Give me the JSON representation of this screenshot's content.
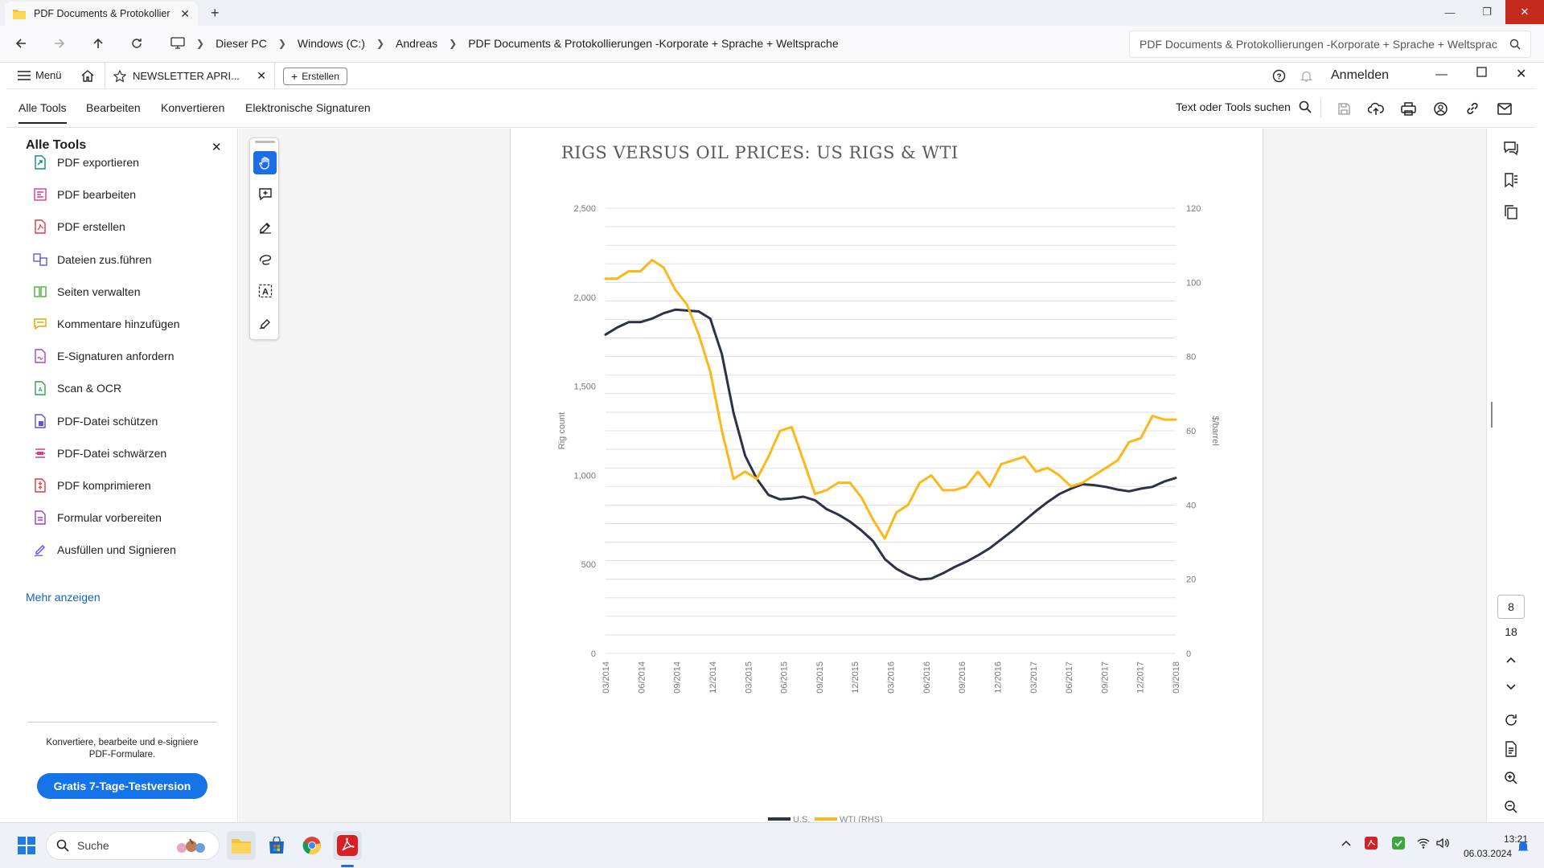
{
  "explorer": {
    "tab_title": "PDF Documents & Protokollier",
    "breadcrumb": [
      "Dieser PC",
      "Windows (C:)",
      "Andreas",
      "PDF Documents & Protokollierungen -Korporate + Sprache + Weltsprache"
    ],
    "search_text": "PDF Documents & Protokollierungen -Korporate + Sprache + Weltsprac"
  },
  "acrobat": {
    "menu_label": "Menü",
    "doc_tab_title": "NEWSLETTER APRI...",
    "create_button": "Erstellen",
    "sign_in": "Anmelden",
    "menu_items": [
      "Alle Tools",
      "Bearbeiten",
      "Konvertieren",
      "Elektronische Signaturen"
    ],
    "search_tools": "Text oder Tools suchen"
  },
  "left_panel": {
    "title": "Alle Tools",
    "tools": [
      {
        "label": "PDF exportieren",
        "color": "#0f8f7e",
        "icon": "export-pdf-icon"
      },
      {
        "label": "PDF bearbeiten",
        "color": "#d43e8b",
        "icon": "edit-pdf-icon"
      },
      {
        "label": "PDF erstellen",
        "color": "#e0393e",
        "icon": "create-pdf-icon"
      },
      {
        "label": "Dateien zus.führen",
        "color": "#5c5ce0",
        "icon": "combine-files-icon"
      },
      {
        "label": "Seiten verwalten",
        "color": "#4caf3f",
        "icon": "organize-pages-icon"
      },
      {
        "label": "Kommentare hinzufügen",
        "color": "#e3a600",
        "icon": "comment-icon"
      },
      {
        "label": "E-Signaturen anfordern",
        "color": "#b041c9",
        "icon": "request-esign-icon"
      },
      {
        "label": "Scan & OCR",
        "color": "#2aa24b",
        "icon": "scan-ocr-icon"
      },
      {
        "label": "PDF-Datei schützen",
        "color": "#6a4ce0",
        "icon": "protect-pdf-icon"
      },
      {
        "label": "PDF-Datei schwärzen",
        "color": "#d43e8b",
        "icon": "redact-pdf-icon"
      },
      {
        "label": "PDF komprimieren",
        "color": "#e0393e",
        "icon": "compress-pdf-icon"
      },
      {
        "label": "Formular vorbereiten",
        "color": "#9b3fc9",
        "icon": "prepare-form-icon"
      },
      {
        "label": "Ausfüllen und Signieren",
        "color": "#6a4ce0",
        "icon": "fill-sign-icon"
      }
    ],
    "more_link": "Mehr anzeigen",
    "promo_text": "Konvertiere, bearbeite und e-signiere PDF-Formulare.",
    "trial_button": "Gratis 7-Tage-Testversion"
  },
  "page_nav": {
    "current": "8",
    "total": "18"
  },
  "taskbar": {
    "search": "Suche",
    "time": "13:21",
    "date": "06.03.2024"
  },
  "colors": {
    "accent": "#1b6ee6",
    "us_series": "#2c3347",
    "wti_series": "#fbb818",
    "trial_button": "#1473e6"
  },
  "chart_data": {
    "type": "line",
    "title": "RIGS VERSUS OIL PRICES: US RIGS & WTI",
    "ylabel": "Rig count",
    "y2label": "$/barrel",
    "ylim": [
      0,
      2500
    ],
    "y2lim": [
      0,
      120
    ],
    "yticks": [
      "2,500",
      "2,000",
      "1,500",
      "1,000",
      "500",
      "0"
    ],
    "y2ticks": [
      "120",
      "100",
      "80",
      "60",
      "40",
      "20",
      "0"
    ],
    "xticks": [
      "03/2014",
      "06/2014",
      "09/2014",
      "12/2014",
      "03/2015",
      "06/2015",
      "09/2015",
      "12/2015",
      "03/2016",
      "06/2016",
      "09/2016",
      "12/2016",
      "03/2017",
      "06/2017",
      "09/2017",
      "12/2017",
      "03/2018"
    ],
    "legend_position": "bottom",
    "grid": true,
    "series": [
      {
        "name": "U.S.",
        "axis": "left",
        "color": "#2c3347",
        "values": [
          1790,
          1830,
          1860,
          1860,
          1880,
          1910,
          1930,
          1925,
          1920,
          1880,
          1680,
          1350,
          1110,
          980,
          890,
          865,
          870,
          880,
          860,
          810,
          780,
          740,
          690,
          630,
          530,
          475,
          440,
          415,
          420,
          450,
          485,
          515,
          550,
          590,
          640,
          690,
          745,
          800,
          850,
          895,
          925,
          950,
          945,
          935,
          920,
          910,
          925,
          935,
          965,
          985
        ]
      },
      {
        "name": "WTI (RHS)",
        "axis": "right",
        "color": "#fbb818",
        "values": [
          101,
          101,
          103,
          103,
          106,
          104,
          98,
          94,
          86,
          76,
          60,
          47,
          49,
          47,
          53,
          60,
          61,
          52,
          43,
          44,
          46,
          46,
          42,
          36,
          31,
          38,
          40,
          46,
          48,
          44,
          44,
          45,
          49,
          45,
          51,
          52,
          53,
          49,
          50,
          48,
          45,
          46,
          48,
          50,
          52,
          57,
          58,
          64,
          63,
          63
        ]
      }
    ]
  }
}
